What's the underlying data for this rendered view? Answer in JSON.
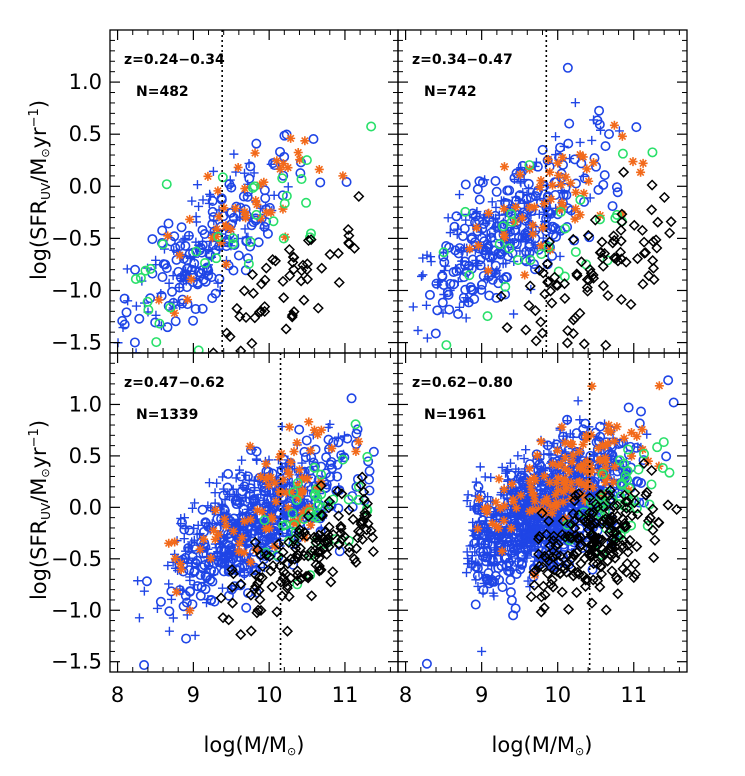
{
  "colors": {
    "blue": "#1f45e6",
    "orange": "#f26a1b",
    "green": "#29e06a",
    "black": "#000000"
  },
  "chart_data": {
    "type": "scatter",
    "layout": "2x2 panels with shared axes",
    "xlabel": "log(M/M",
    "xlabel_suffix": ")",
    "ylabel": "log(SFR",
    "ylabel_sub": "UV",
    "ylabel_mid": "/M",
    "ylabel_unit": "yr",
    "ylabel_exp": "−1",
    "ylabel_close": ")",
    "xlim": [
      7.9,
      11.7
    ],
    "ylim": [
      -1.6,
      1.5
    ],
    "x_ticks": [
      8,
      9,
      10,
      11
    ],
    "x_tick_labels": [
      "8",
      "9",
      "10",
      "11"
    ],
    "y_ticks": [
      1.0,
      0.5,
      0.0,
      -0.5,
      -1.0,
      -1.5
    ],
    "y_tick_labels": [
      "1.0",
      "0.5",
      "0.0",
      "−0.5",
      "−1.0",
      "−1.5"
    ],
    "grid": false,
    "marker_legend": {
      "blue_circle_and_plus": "blue",
      "orange_asterisk": "orange",
      "green_circle": "green",
      "black_diamond": "black"
    },
    "panels": [
      {
        "z_label": "z=0.24−0.34",
        "n_label": "N=482",
        "mass_limit": 9.38,
        "clusters": [
          {
            "marker": "circle",
            "color": "blue",
            "count": 150,
            "cx": 9.3,
            "sx": 0.55,
            "slope": 0.62,
            "base": -0.55,
            "sy": 0.25,
            "xmin": 8.0,
            "xmax": 11.2,
            "seed": 11
          },
          {
            "marker": "plus",
            "color": "blue",
            "count": 90,
            "cx": 9.1,
            "sx": 0.5,
            "slope": 0.62,
            "base": -0.55,
            "sy": 0.25,
            "xmin": 8.0,
            "xmax": 10.8,
            "seed": 12
          },
          {
            "marker": "asterisk",
            "color": "orange",
            "count": 45,
            "cx": 9.6,
            "sx": 0.6,
            "slope": 0.5,
            "base": -0.25,
            "sy": 0.25,
            "xmin": 8.3,
            "xmax": 11.0,
            "seed": 13
          },
          {
            "marker": "circle",
            "color": "green",
            "count": 35,
            "cx": 9.6,
            "sx": 0.8,
            "slope": 0.5,
            "base": -0.5,
            "sy": 0.3,
            "xmin": 8.0,
            "xmax": 11.5,
            "seed": 14
          },
          {
            "marker": "diamond",
            "color": "black",
            "count": 55,
            "cx": 10.2,
            "sx": 0.55,
            "slope": 0.55,
            "base": -0.95,
            "sy": 0.25,
            "xmin": 8.0,
            "xmax": 11.2,
            "seed": 15
          }
        ]
      },
      {
        "z_label": "z=0.34−0.47",
        "n_label": "N=742",
        "mass_limit": 9.85,
        "clusters": [
          {
            "marker": "circle",
            "color": "blue",
            "count": 230,
            "cx": 9.5,
            "sx": 0.6,
            "slope": 0.5,
            "base": -0.35,
            "sy": 0.3,
            "xmin": 8.3,
            "xmax": 11.5,
            "seed": 21
          },
          {
            "marker": "plus",
            "color": "blue",
            "count": 150,
            "cx": 9.3,
            "sx": 0.55,
            "slope": 0.5,
            "base": -0.4,
            "sy": 0.3,
            "xmin": 8.1,
            "xmax": 11.0,
            "seed": 22
          },
          {
            "marker": "asterisk",
            "color": "orange",
            "count": 55,
            "cx": 9.8,
            "sx": 0.6,
            "slope": 0.45,
            "base": -0.2,
            "sy": 0.3,
            "xmin": 8.3,
            "xmax": 11.5,
            "seed": 23
          },
          {
            "marker": "circle",
            "color": "green",
            "count": 30,
            "cx": 9.7,
            "sx": 0.8,
            "slope": 0.4,
            "base": -0.55,
            "sy": 0.3,
            "xmin": 8.3,
            "xmax": 11.5,
            "seed": 24
          },
          {
            "marker": "diamond",
            "color": "black",
            "count": 90,
            "cx": 10.5,
            "sx": 0.55,
            "slope": 0.45,
            "base": -0.8,
            "sy": 0.3,
            "xmin": 9.0,
            "xmax": 11.5,
            "seed": 25
          }
        ]
      },
      {
        "z_label": "z=0.47−0.62",
        "n_label": "N=1339",
        "mass_limit": 10.15,
        "clusters": [
          {
            "marker": "circle",
            "color": "blue",
            "count": 380,
            "cx": 9.9,
            "sx": 0.6,
            "slope": 0.48,
            "base": -0.15,
            "sy": 0.27,
            "xmin": 8.3,
            "xmax": 11.4,
            "seed": 31
          },
          {
            "marker": "plus",
            "color": "blue",
            "count": 260,
            "cx": 9.6,
            "sx": 0.55,
            "slope": 0.48,
            "base": -0.2,
            "sy": 0.27,
            "xmin": 8.2,
            "xmax": 11.0,
            "seed": 32
          },
          {
            "marker": "asterisk",
            "color": "orange",
            "count": 85,
            "cx": 10.0,
            "sx": 0.6,
            "slope": 0.45,
            "base": 0.05,
            "sy": 0.25,
            "xmin": 8.6,
            "xmax": 11.3,
            "seed": 33
          },
          {
            "marker": "circle",
            "color": "green",
            "count": 45,
            "cx": 10.6,
            "sx": 0.4,
            "slope": 0.4,
            "base": -0.05,
            "sy": 0.25,
            "xmin": 8.3,
            "xmax": 11.3,
            "seed": 34
          },
          {
            "marker": "diamond",
            "color": "black",
            "count": 150,
            "cx": 10.5,
            "sx": 0.5,
            "slope": 0.4,
            "base": -0.45,
            "sy": 0.22,
            "xmin": 9.3,
            "xmax": 11.4,
            "seed": 35
          }
        ]
      },
      {
        "z_label": "z=0.62−0.80",
        "n_label": "N=1961",
        "mass_limit": 10.42,
        "clusters": [
          {
            "marker": "circle",
            "color": "blue",
            "count": 600,
            "cx": 10.0,
            "sx": 0.55,
            "slope": 0.4,
            "base": 0.0,
            "sy": 0.28,
            "xmin": 8.9,
            "xmax": 11.6,
            "seed": 41
          },
          {
            "marker": "plus",
            "color": "blue",
            "count": 420,
            "cx": 9.7,
            "sx": 0.5,
            "slope": 0.4,
            "base": 0.0,
            "sy": 0.28,
            "xmin": 8.8,
            "xmax": 11.2,
            "seed": 42
          },
          {
            "marker": "asterisk",
            "color": "orange",
            "count": 130,
            "cx": 10.1,
            "sx": 0.55,
            "slope": 0.4,
            "base": 0.22,
            "sy": 0.25,
            "xmin": 8.9,
            "xmax": 11.5,
            "seed": 43
          },
          {
            "marker": "circle",
            "color": "green",
            "count": 50,
            "cx": 10.8,
            "sx": 0.35,
            "slope": 0.4,
            "base": 0.05,
            "sy": 0.25,
            "xmin": 9.0,
            "xmax": 11.5,
            "seed": 44
          },
          {
            "marker": "diamond",
            "color": "black",
            "count": 220,
            "cx": 10.45,
            "sx": 0.4,
            "slope": 0.35,
            "base": -0.35,
            "sy": 0.22,
            "xmin": 9.6,
            "xmax": 11.6,
            "seed": 45
          }
        ]
      }
    ],
    "outliers": [
      {
        "panel": 3,
        "marker": "circle",
        "color": "blue",
        "x": 8.28,
        "y": -1.52
      },
      {
        "panel": 3,
        "marker": "plus",
        "color": "blue",
        "x": 9.0,
        "y": -1.4
      }
    ]
  }
}
